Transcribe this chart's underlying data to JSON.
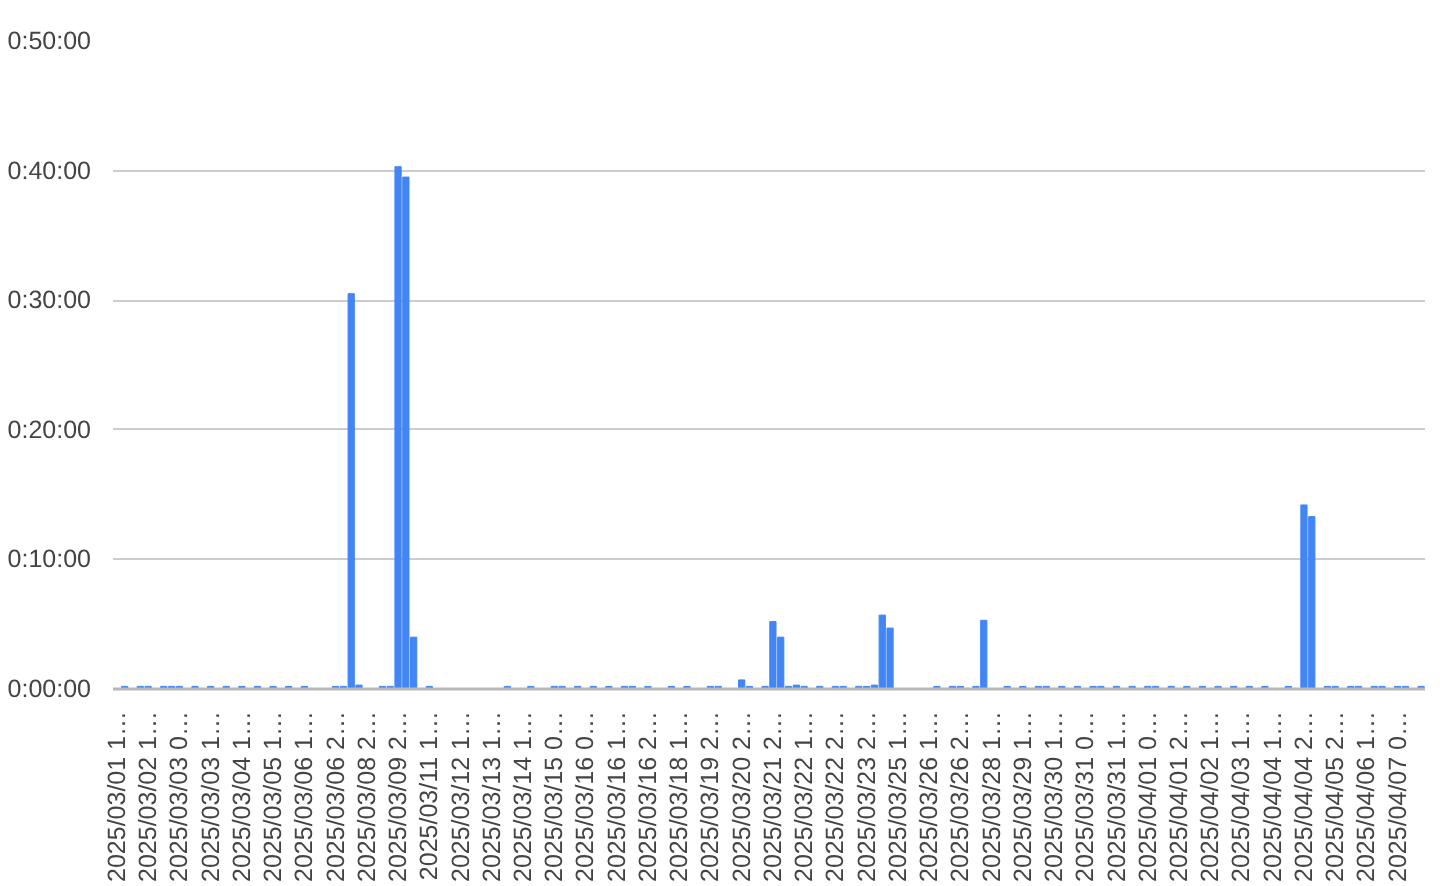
{
  "chart_data": {
    "type": "bar",
    "categories": [
      "2025/03/01 1…",
      null,
      null,
      null,
      "2025/03/02 1…",
      null,
      null,
      null,
      "2025/03/03 0…",
      null,
      null,
      null,
      "2025/03/03 1…",
      null,
      null,
      null,
      "2025/03/04 1…",
      null,
      null,
      null,
      "2025/03/05 1…",
      null,
      null,
      null,
      "2025/03/06 1…",
      null,
      null,
      null,
      "2025/03/06 2…",
      null,
      null,
      null,
      "2025/03/08 2…",
      null,
      null,
      null,
      "2025/03/09 2…",
      null,
      null,
      null,
      "2025/03/11 1…",
      null,
      null,
      null,
      "2025/03/12 1…",
      null,
      null,
      null,
      "2025/03/13 1…",
      null,
      null,
      null,
      "2025/03/14 1…",
      null,
      null,
      null,
      "2025/03/15 0…",
      null,
      null,
      null,
      "2025/03/16 0…",
      null,
      null,
      null,
      "2025/03/16 1…",
      null,
      null,
      null,
      "2025/03/16 2…",
      null,
      null,
      null,
      "2025/03/18 1…",
      null,
      null,
      null,
      "2025/03/19 2…",
      null,
      null,
      null,
      "2025/03/20 2…",
      null,
      null,
      null,
      "2025/03/21 2…",
      null,
      null,
      null,
      "2025/03/22 1…",
      null,
      null,
      null,
      "2025/03/22 2…",
      null,
      null,
      null,
      "2025/03/23 2…",
      null,
      null,
      null,
      "2025/03/25 1…",
      null,
      null,
      null,
      "2025/03/26 1…",
      null,
      null,
      null,
      "2025/03/26 2…",
      null,
      null,
      null,
      "2025/03/28 1…",
      null,
      null,
      null,
      "2025/03/29 1…",
      null,
      null,
      null,
      "2025/03/30 1…",
      null,
      null,
      null,
      "2025/03/31 0…",
      null,
      null,
      null,
      "2025/03/31 1…",
      null,
      null,
      null,
      "2025/04/01 0…",
      null,
      null,
      null,
      "2025/04/01 2…",
      null,
      null,
      null,
      "2025/04/02 1…",
      null,
      null,
      null,
      "2025/04/03 1…",
      null,
      null,
      null,
      "2025/04/04 1…",
      null,
      null,
      null,
      "2025/04/04 2…",
      null,
      null,
      null,
      "2025/04/05 2…",
      null,
      null,
      null,
      "2025/04/06 1…",
      null,
      null,
      null,
      "2025/04/07 0…",
      null,
      null,
      null
    ],
    "values": [
      0,
      0.2,
      0,
      0.2,
      0.2,
      0,
      0.2,
      0.2,
      0.2,
      0,
      0.2,
      0,
      0.2,
      0,
      0.2,
      0,
      0.2,
      0,
      0.2,
      0,
      0.2,
      0,
      0.2,
      0,
      0.2,
      0,
      0,
      0,
      0.2,
      0.2,
      30.5,
      0.3,
      0,
      0,
      0.2,
      0.2,
      40.3,
      39.5,
      4.0,
      0,
      0.2,
      0,
      0,
      0,
      0,
      0,
      0,
      0,
      0,
      0,
      0.2,
      0,
      0,
      0.2,
      0,
      0,
      0.2,
      0.2,
      0,
      0.2,
      0,
      0.2,
      0,
      0.2,
      0,
      0.2,
      0.2,
      0,
      0.2,
      0,
      0,
      0.2,
      0,
      0.2,
      0,
      0,
      0.2,
      0.2,
      0,
      0,
      0.7,
      0.2,
      0,
      0.2,
      5.2,
      4.0,
      0.2,
      0.3,
      0.2,
      0,
      0.2,
      0,
      0.2,
      0.2,
      0,
      0.2,
      0.2,
      0.3,
      5.7,
      4.7,
      0,
      0,
      0,
      0,
      0,
      0.2,
      0,
      0.2,
      0.2,
      0,
      0.2,
      5.3,
      0,
      0,
      0.2,
      0,
      0.2,
      0,
      0.2,
      0.2,
      0,
      0.2,
      0,
      0.2,
      0,
      0.2,
      0.2,
      0,
      0.2,
      0,
      0.2,
      0,
      0.2,
      0.2,
      0,
      0.2,
      0,
      0.2,
      0,
      0.2,
      0,
      0.2,
      0,
      0.2,
      0,
      0.2,
      0,
      0.2,
      0,
      0,
      0.2,
      0,
      14.2,
      13.3,
      0,
      0.2,
      0.2,
      0,
      0.2,
      0.2,
      0,
      0.2,
      0.2,
      0,
      0.2,
      0.2,
      0,
      0.2
    ],
    "color": "#4285f4",
    "ylim": [
      0,
      50
    ],
    "yticks": [
      {
        "value": 0,
        "label": "0:00:00"
      },
      {
        "value": 10,
        "label": "0:10:00"
      },
      {
        "value": 20,
        "label": "0:20:00"
      },
      {
        "value": 30,
        "label": "0:30:00"
      },
      {
        "value": 40,
        "label": "0:40:00"
      },
      {
        "value": 50,
        "label": "0:50:00"
      }
    ],
    "grid": "y"
  }
}
